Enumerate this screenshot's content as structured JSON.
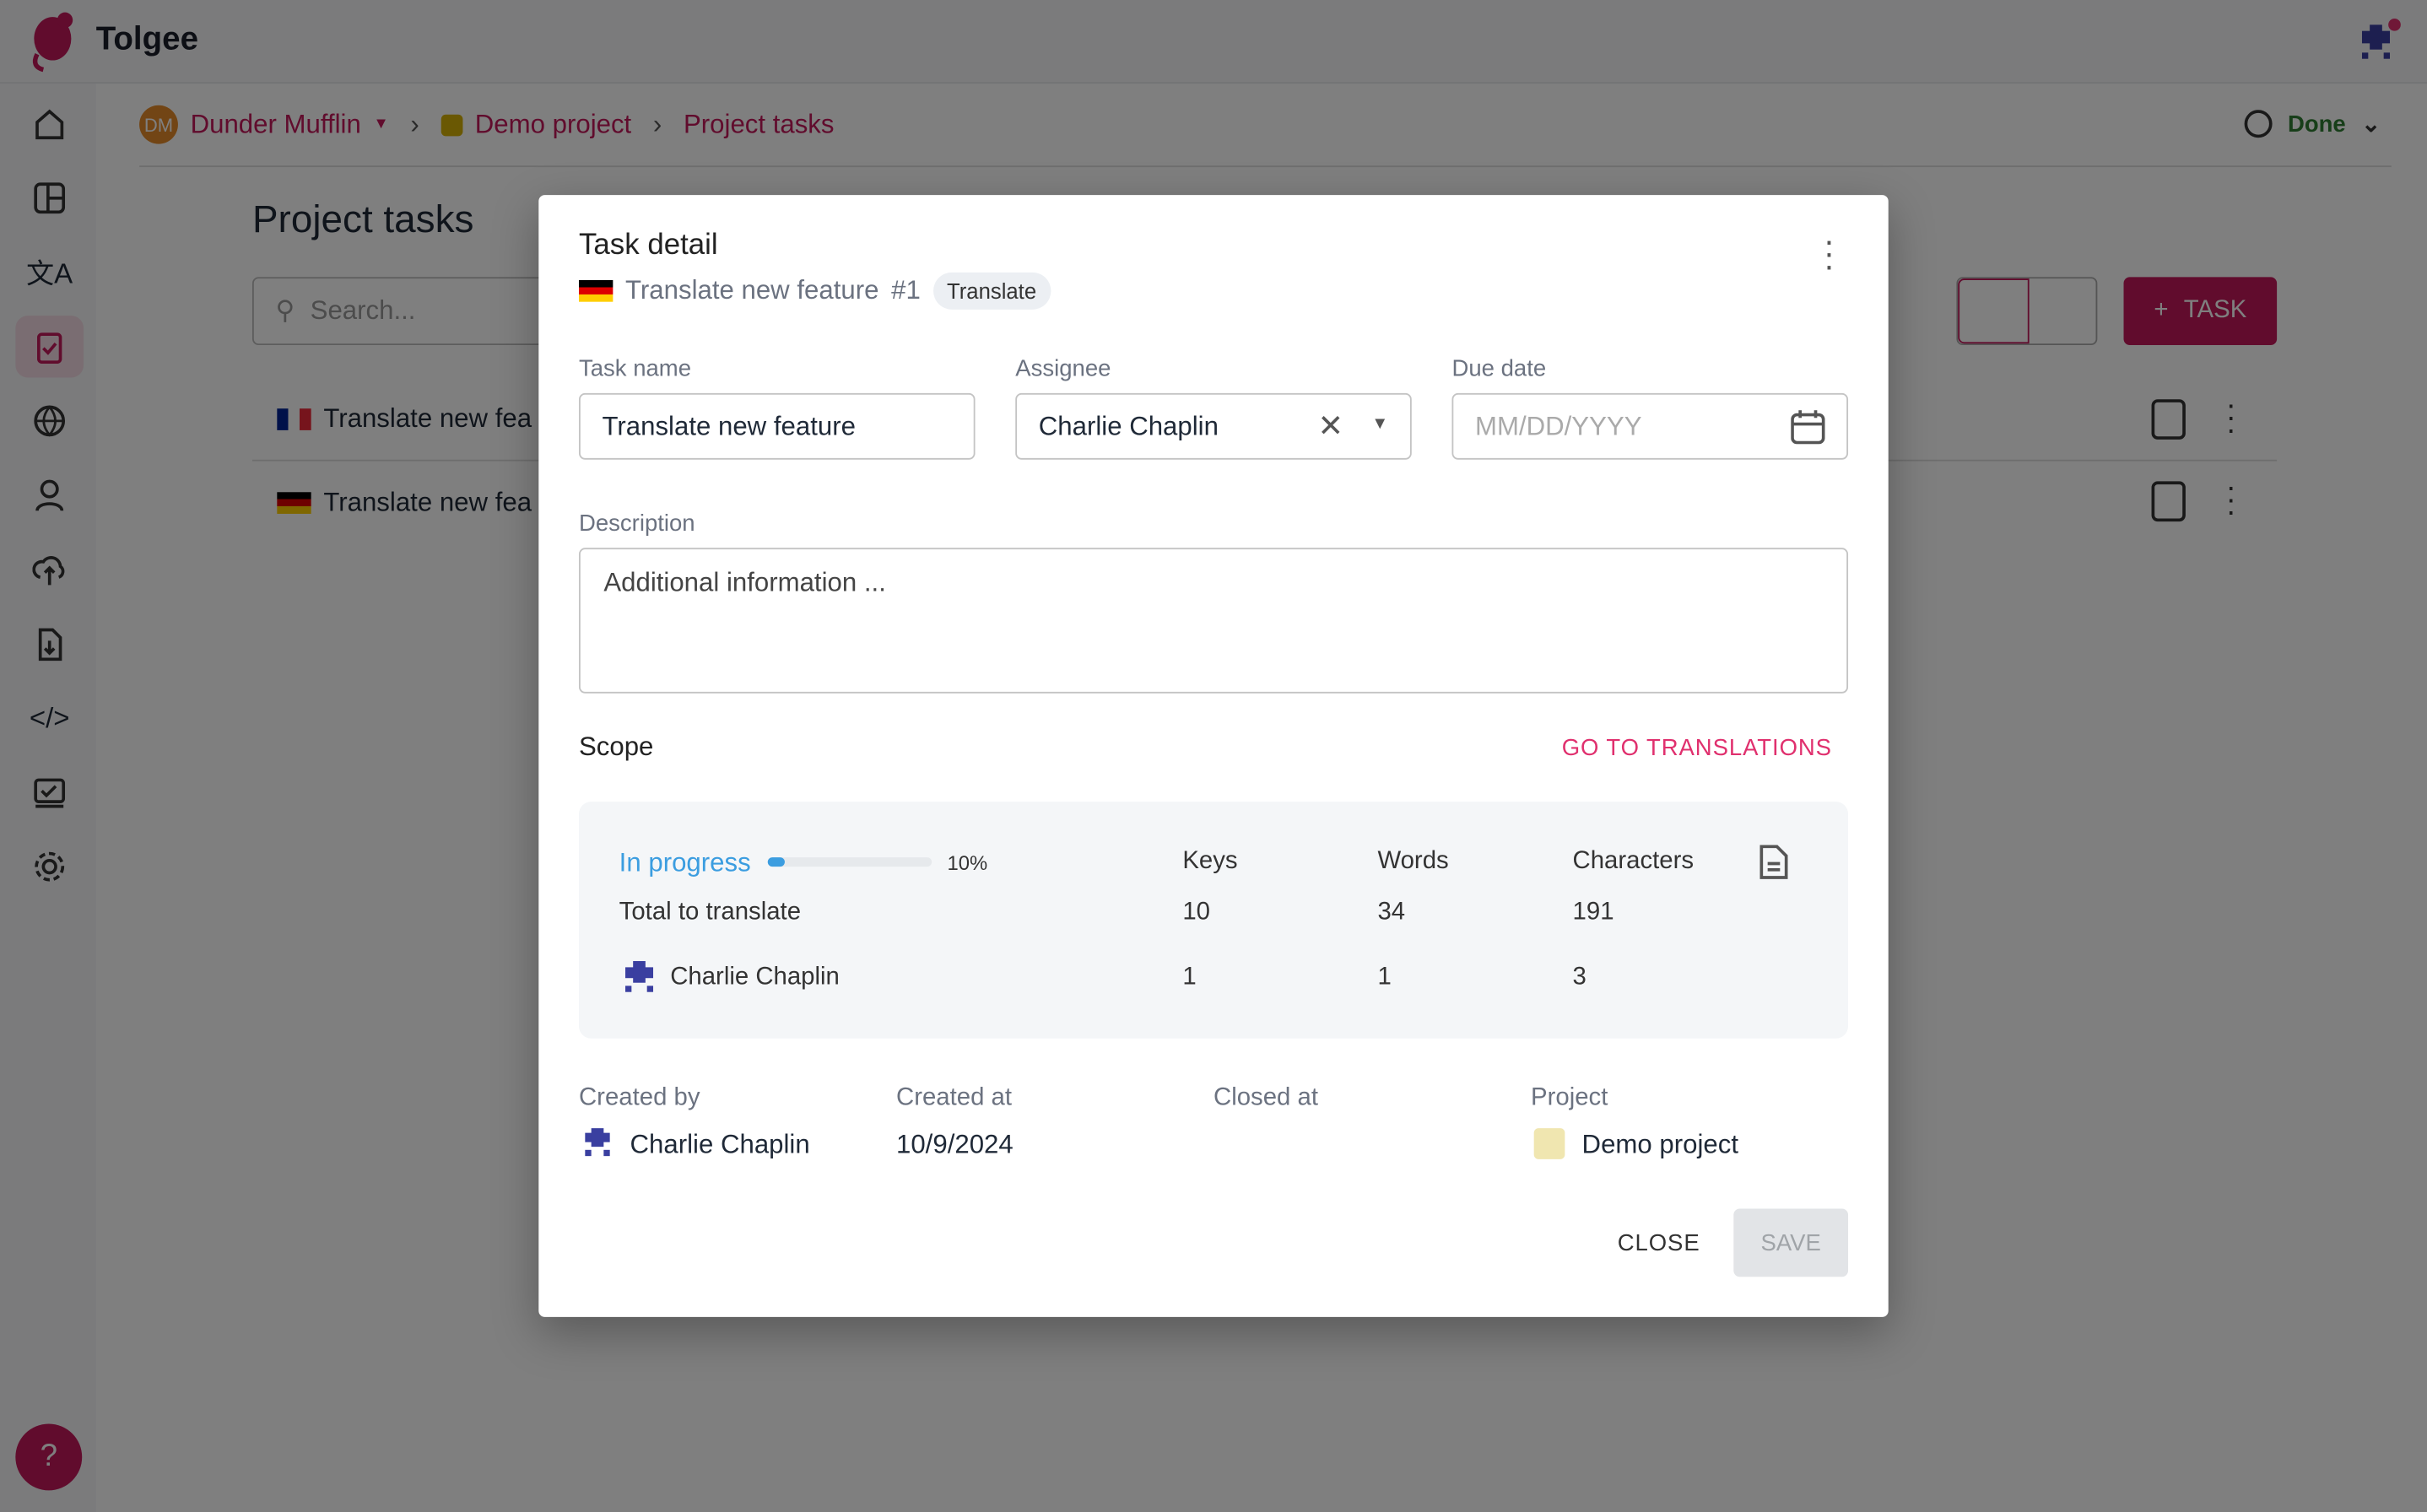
{
  "app": {
    "name": "Tolgee",
    "brand_color": "#c2185b"
  },
  "breadcrumb": {
    "org_initials": "DM",
    "org": "Dunder Mufflin",
    "project": "Demo project",
    "page": "Project tasks"
  },
  "header": {
    "status": "Done"
  },
  "sidebar": {
    "items": [
      "home-icon",
      "dashboard-icon",
      "translate-icon",
      "tasks-icon",
      "languages-icon",
      "members-icon",
      "import-icon",
      "export-icon",
      "developer-icon",
      "review-icon",
      "settings-icon"
    ]
  },
  "page": {
    "title": "Project tasks",
    "search_placeholder": "Search...",
    "add_task": "TASK",
    "rows": [
      {
        "lang": "fr",
        "name": "Translate new fea"
      },
      {
        "lang": "de",
        "name": "Translate new fea"
      }
    ]
  },
  "modal": {
    "title": "Task detail",
    "subtitle": "Translate new feature",
    "task_number": "#1",
    "type_chip": "Translate",
    "task_name_label": "Task name",
    "task_name": "Translate new feature",
    "assignee_label": "Assignee",
    "assignee": "Charlie Chaplin",
    "due_date_label": "Due date",
    "due_date_placeholder": "MM/DD/YYYY",
    "description_label": "Description",
    "description_placeholder": "Additional information ...",
    "scope_label": "Scope",
    "go_to_translations": "GO TO TRANSLATIONS",
    "scope": {
      "status": "In progress",
      "progress_percent": 10,
      "progress_label": "10%",
      "headers": [
        "Keys",
        "Words",
        "Characters"
      ],
      "total": {
        "label": "Total to translate",
        "values": [
          "10",
          "34",
          "191"
        ]
      },
      "assignee": {
        "name": "Charlie Chaplin",
        "values": [
          "1",
          "1",
          "3"
        ]
      }
    },
    "meta": {
      "created_by_label": "Created by",
      "created_by": "Charlie Chaplin",
      "created_at_label": "Created at",
      "created_at": "10/9/2024",
      "closed_at_label": "Closed at",
      "project_label": "Project",
      "project": "Demo project"
    },
    "close": "CLOSE",
    "save": "SAVE"
  }
}
